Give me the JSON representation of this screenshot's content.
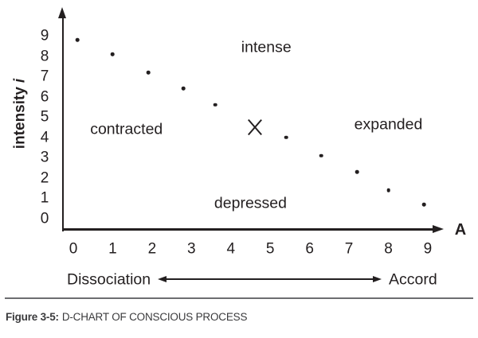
{
  "chart_data": {
    "type": "scatter",
    "title": "",
    "xlabel": "A",
    "ylabel_main": "intensity",
    "ylabel_var": "i",
    "xlim": [
      0,
      9
    ],
    "ylim": [
      0,
      9
    ],
    "grid": false,
    "legend": "none",
    "x_ticks": [
      "0",
      "1",
      "2",
      "3",
      "4",
      "5",
      "6",
      "7",
      "8",
      "9"
    ],
    "y_ticks": [
      "9",
      "8",
      "7",
      "6",
      "5",
      "4",
      "3",
      "2",
      "1",
      "0"
    ],
    "points": [
      [
        0.1,
        8.8
      ],
      [
        1.0,
        8.1
      ],
      [
        1.9,
        7.2
      ],
      [
        2.8,
        6.4
      ],
      [
        3.6,
        5.6
      ],
      [
        5.4,
        4.0
      ],
      [
        6.3,
        3.1
      ],
      [
        7.2,
        2.3
      ],
      [
        8.0,
        1.4
      ],
      [
        8.9,
        0.7
      ]
    ],
    "marker": {
      "symbol": "X",
      "x": 4.6,
      "y": 4.5
    },
    "annotations": [
      {
        "text": "intense",
        "x": 4.9,
        "y": 8.4
      },
      {
        "text": "contracted",
        "x": 1.35,
        "y": 4.4
      },
      {
        "text": "expanded",
        "x": 8.0,
        "y": 4.6
      },
      {
        "text": "depressed",
        "x": 4.5,
        "y": 0.75
      }
    ]
  },
  "footer": {
    "left_label": "Dissociation",
    "right_label": "Accord"
  },
  "caption": {
    "label": "Figure 3-5:",
    "text": "D-CHART OF CONSCIOUS PROCESS"
  },
  "colors": {
    "ink": "#231f20",
    "rule": "#6d6e71",
    "caption": "#3a3a3c",
    "background": "#ffffff"
  }
}
